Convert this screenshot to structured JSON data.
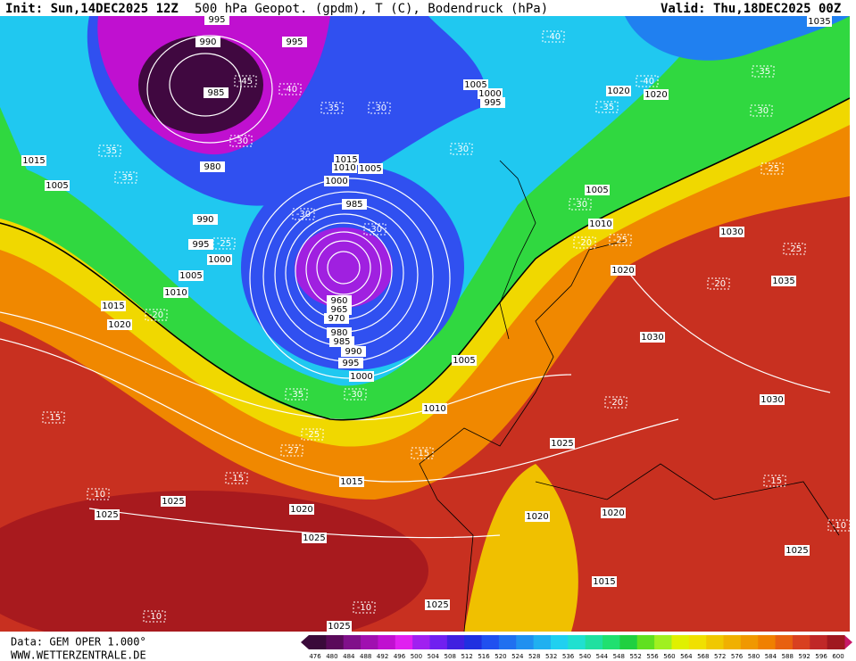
{
  "header": {
    "init": "Init: Sun,14DEC2025 12Z",
    "title": "500 hPa Geopot. (gpdm), T (C), Bodendruck (hPa)",
    "valid": "Valid: Thu,18DEC2025 00Z"
  },
  "footer": {
    "source": "Data: GEM OPER 1.000°",
    "site": "WWW.WETTERZENTRALE.DE"
  },
  "legend": {
    "ticks": [
      476,
      480,
      484,
      488,
      492,
      496,
      500,
      504,
      508,
      512,
      516,
      520,
      524,
      528,
      532,
      536,
      540,
      544,
      548,
      552,
      556,
      560,
      564,
      568,
      572,
      576,
      580,
      584,
      588,
      592,
      596,
      600
    ],
    "colors": [
      "#3a0a3a",
      "#5a0a5a",
      "#80108a",
      "#a010b0",
      "#c010d0",
      "#e020f0",
      "#a020f0",
      "#7020f0",
      "#4020e0",
      "#2030e0",
      "#2050f0",
      "#2070f0",
      "#2090f0",
      "#20b0f0",
      "#20d0f0",
      "#20e0d0",
      "#20e0a0",
      "#20e070",
      "#20d040",
      "#60e020",
      "#a0f020",
      "#e0f000",
      "#f0e000",
      "#f0c800",
      "#f0b000",
      "#f09800",
      "#f08000",
      "#e86010",
      "#d84020",
      "#c02828",
      "#a01820"
    ]
  },
  "map": {
    "pressure_labels": [
      995,
      990,
      995,
      985,
      980,
      990,
      995,
      1000,
      1005,
      1010,
      1015,
      1020,
      1015,
      1005,
      1005,
      1000,
      995,
      1020,
      1020,
      1035,
      1015,
      1010,
      1005,
      1000,
      985,
      1005,
      1010,
      1020,
      1030,
      1035,
      1030,
      1030,
      960,
      965,
      970,
      980,
      985,
      990,
      995,
      1000,
      1005,
      1010,
      1025,
      1015,
      1020,
      1025,
      1025,
      1025,
      1020,
      1020,
      1015,
      1025,
      1025,
      1025
    ],
    "temperature_labels": [
      -45,
      -40,
      -40,
      -40,
      -35,
      -30,
      -35,
      -30,
      -35,
      -35,
      -30,
      -30,
      -35,
      -25,
      -30,
      -30,
      -30,
      -25,
      -25,
      -20,
      -25,
      -20,
      -20,
      -15,
      -35,
      -30,
      -20,
      -25,
      -27,
      -15,
      -15,
      -10,
      -15,
      -10,
      -10,
      -10
    ]
  }
}
